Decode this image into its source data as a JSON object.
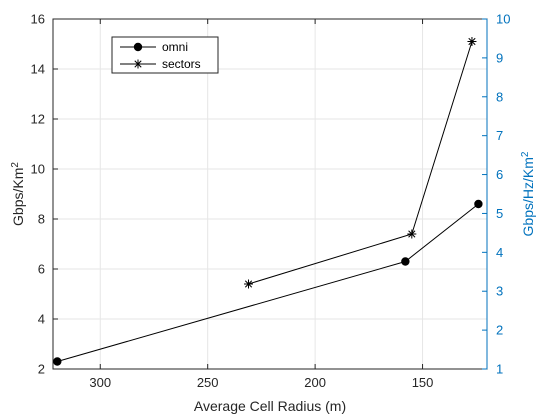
{
  "chart_data": {
    "type": "line",
    "xlabel": "Average Cell Radius (m)",
    "x_reversed": true,
    "xlim": [
      120,
      322
    ],
    "xticks": [
      300,
      250,
      200,
      150
    ],
    "ylabel_left": {
      "base": "Gbps/Km",
      "sup": "2"
    },
    "ylim_left": [
      2,
      16
    ],
    "yticks_left": [
      2,
      4,
      6,
      8,
      10,
      12,
      14,
      16
    ],
    "ylabel_right": {
      "base": "Gbps/Hz/Km",
      "sup": "2"
    },
    "ylim_right": [
      1,
      10
    ],
    "yticks_right": [
      1,
      2,
      3,
      4,
      5,
      6,
      7,
      8,
      9,
      10
    ],
    "grid": true,
    "legend_position": "top-left",
    "colors": {
      "axis_left": "#262626",
      "axis_right": "#0072bd",
      "series": "#000000",
      "grid": "#e6e6e6"
    },
    "series": [
      {
        "name": "omni",
        "marker": "dot",
        "x": [
          320,
          158,
          124
        ],
        "y": [
          2.3,
          6.3,
          8.6
        ]
      },
      {
        "name": "sectors",
        "marker": "asterisk",
        "x": [
          231,
          155,
          127
        ],
        "y": [
          5.4,
          7.4,
          15.1
        ]
      }
    ]
  }
}
